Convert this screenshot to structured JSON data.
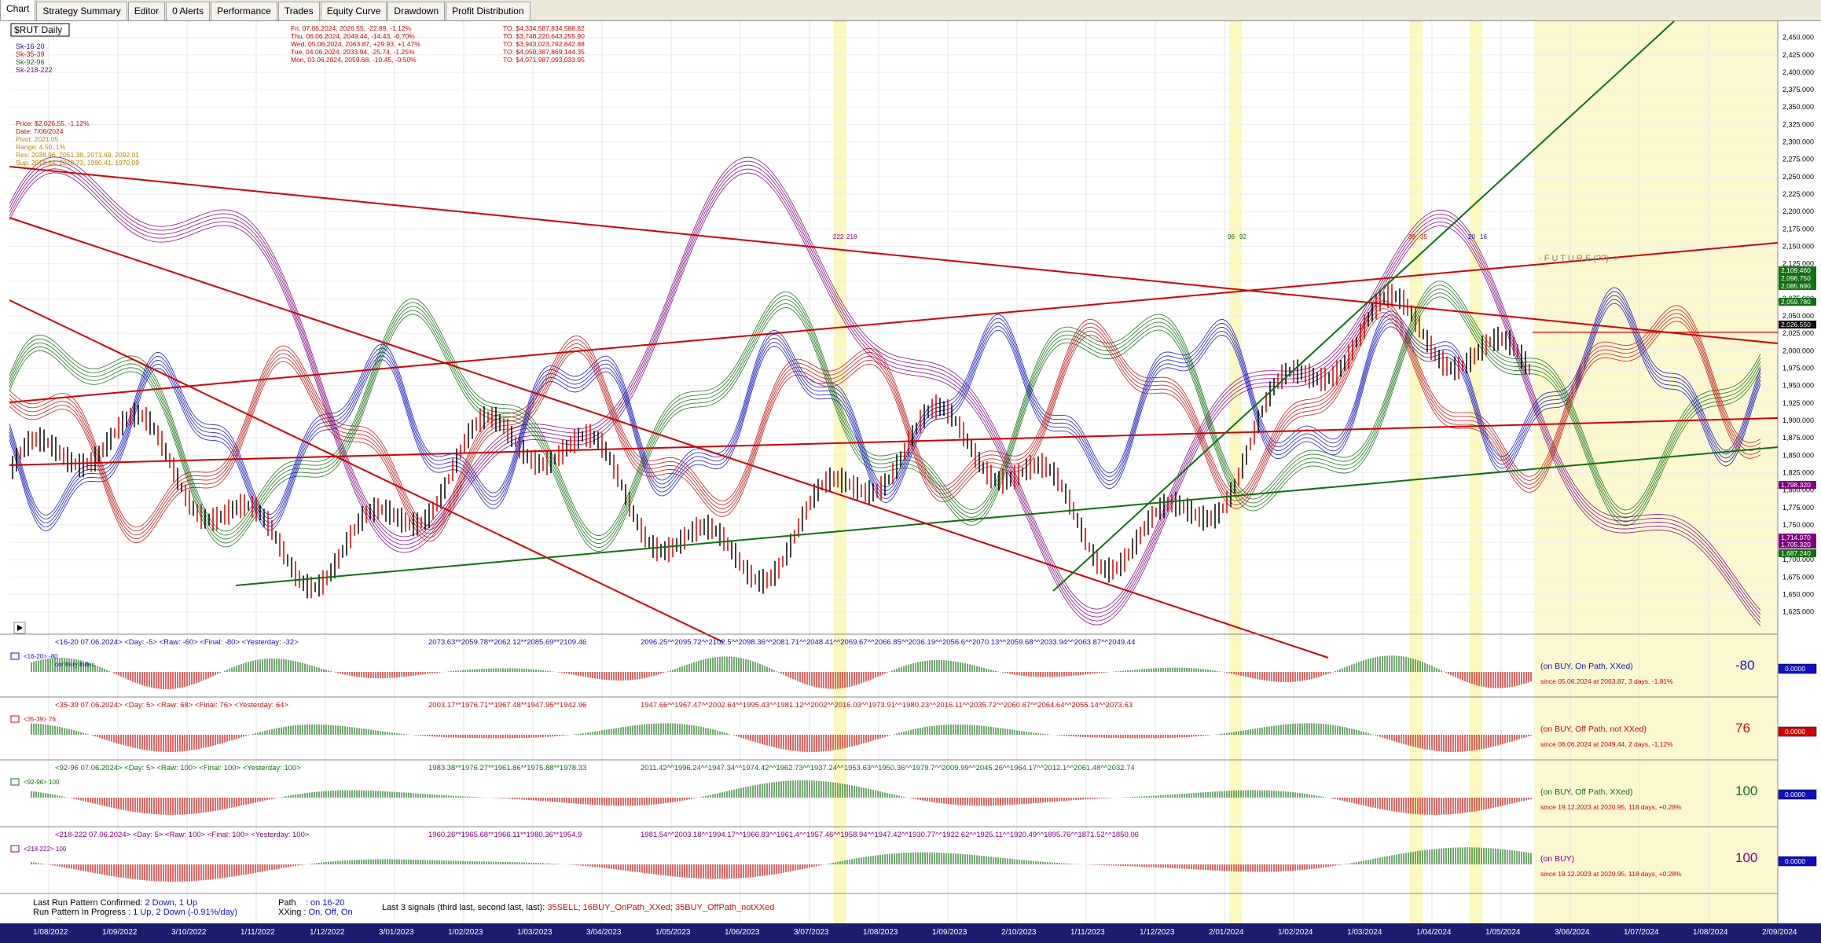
{
  "tabs": [
    "Chart",
    "Strategy Summary",
    "Editor",
    "0 Alerts",
    "Performance",
    "Trades",
    "Equity Curve",
    "Drawdown",
    "Profit Distribution"
  ],
  "symbol_label": "$RUT Daily",
  "legend": [
    "Sk-16-20",
    "Sk-35-39",
    "Sk-92-96",
    "Sk-218-222"
  ],
  "legend_colors": [
    "#1010c0",
    "#c01010",
    "#107010",
    "#800080"
  ],
  "info_block": [
    "Price: $2,026.55, -1.12%",
    "Date: 7/06/2024",
    "Pivot: 2021.05",
    "Range: 4.50, 1%",
    "Res: 2038.96, 2051.38, 2071.69, 2092.01",
    "Sup: 2018.64, 2010.73, 1990.41, 1970.09"
  ],
  "daily_rows": [
    [
      "Fri, 07.06.2024, 2026.55, -22.89, -1.12%",
      "TO: $4,334,587,834,588.82"
    ],
    [
      "Thu, 06.06.2024, 2049.44, -14.43, -0.70%",
      "TO: $3,748,220,643,255.90"
    ],
    [
      "Wed, 05.06.2024, 2063.87, +29.93, +1.47%",
      "TO: $3,943,023,792,842.88"
    ],
    [
      "Tue, 04.06.2024, 2033.94, -25.74, -1.25%",
      "TO: $4,050,387,869,144.35"
    ],
    [
      "Mon, 03.06.2024, 2059.68, -10.45, -0.50%",
      "TO: $4,071,987,093,033.95"
    ]
  ],
  "cycle_labels": [
    "222",
    "218",
    "96",
    "92",
    "39",
    "35",
    "20",
    "16"
  ],
  "future_label": "- F U T U R E (??) ->",
  "price_ticks": [
    "2,450.000",
    "2,425.000",
    "2,400.000",
    "2,375.000",
    "2,350.000",
    "2,325.000",
    "2,300.000",
    "2,275.000",
    "2,250.000",
    "2,225.000",
    "2,200.000",
    "2,175.000",
    "2,150.000",
    "2,125.000",
    "2,100.000",
    "2,075.000",
    "2,050.000",
    "2,025.000",
    "2,000.000",
    "1,975.000",
    "1,950.000",
    "1,925.000",
    "1,900.000",
    "1,875.000",
    "1,850.000",
    "1,825.000",
    "1,800.000",
    "1,775.000",
    "1,750.000",
    "1,725.000",
    "1,700.000",
    "1,675.000",
    "1,650.000",
    "1,625.000"
  ],
  "price_tags": [
    {
      "text": "2,109.460",
      "color": "#107010"
    },
    {
      "text": "2,096.750",
      "color": "#107010"
    },
    {
      "text": "2,085.690",
      "color": "#107010"
    },
    {
      "text": "2,059.780",
      "color": "#107010"
    },
    {
      "text": "2,026.550",
      "color": "#000000"
    },
    {
      "text": "1,798.320",
      "color": "#800080"
    },
    {
      "text": "1,714.070",
      "color": "#800080"
    },
    {
      "text": "1,705.320",
      "color": "#800080"
    },
    {
      "text": "1,687.240",
      "color": "#107010"
    }
  ],
  "indicators": [
    {
      "header": "<16-20  07.06.2024> <Day: -5> <Raw: -60> <Final: -80> <Yesterday: -32>",
      "values_a": "2073.63**2059.78**2062.12**2085.69**2109.46",
      "values_b": "2096.25^^2095.72^^2102.5^^2098.36^^2081.71^^2048.41^^2069.67^^2066.85^^2036.19^^2056.6^^2070.13^^2059.68^^2033.94^^2063.87^^2049.44",
      "tag": "<16-20>  -80",
      "tag2": "contrary index",
      "status": "(on BUY, On Path, XXed)",
      "since": "since 05.06.2024 at 2063.87, 3 days, -1.81%",
      "score": "-80",
      "box": "0.0000",
      "color": "#1010c0",
      "score_color": "#1010c0"
    },
    {
      "header": "<35-39  07.06.2024> <Day: 5> <Raw: 68> <Final: 76> <Yesterday: 64>",
      "values_a": "2003.17**1976.71**1967.48**1947.95**1942.96",
      "values_b": "1947.66^^1967.47^^2002.64^^1995.43^^1981.12^^2002^^2016.03^^1973.91^^1980.23^^2016.11^^2035.72^^2060.67^^2064.64^^2055.14^^2073.63",
      "tag": "<35-39>  76",
      "tag2": "",
      "status": "(on BUY, Off Path, not XXed)",
      "since": "since 06.06.2024 at 2049.44, 2 days, -1.12%",
      "score": "76",
      "box": "0.0000",
      "color": "#c01010",
      "score_color": "#c01010"
    },
    {
      "header": "<92-96  07.06.2024> <Day: 5> <Raw: 100> <Final: 100> <Yesterday: 100>",
      "values_a": "1983.38**1976.27**1961.86**1975.88**1978.33",
      "values_b": "2011.42^^1996.24^^1947.34^^1974.42^^1962.73^^1937.24^^1953.63^^1950.36^^1979.7^^2009.99^^2045.26^^1964.17^^2012.1^^2061.48^^2032.74",
      "tag": "<92-96>  100",
      "tag2": "",
      "status": "(on BUY, Off Path, XXed)",
      "since": "since 19.12.2023 at 2020.95, 118 days, +0.28%",
      "score": "100",
      "box": "0.0000",
      "color": "#107010",
      "score_color": "#107010"
    },
    {
      "header": "<218-222  07.06.2024> <Day: 5> <Raw: 100> <Final: 100> <Yesterday: 100>",
      "values_a": "1960.26**1965.68**1966.11**1980.36**1954.9",
      "values_b": "1981.54^^2003.18^^1994.17^^1966.83^^1961.4^^1957.46^^1958.94^^1947.42^^1930.77^^1922.62^^1925.11^^1920.49^^1895.76^^1871.52^^1850.06",
      "tag": "<218-222>  100",
      "tag2": "",
      "status": "(on BUY)",
      "since": "since 19.12.2023 at 2020.95, 118 days, +0.28%",
      "score": "100",
      "box": "0.0000",
      "color": "#800080",
      "score_color": "#800080"
    }
  ],
  "bottom": {
    "l1a": "Last Run Pattern Confirmed:",
    "l1b": "2 Down, 1 Up",
    "l2a": "Run Pattern In Progress",
    "l2b": ": 1 Up, 2 Down (-0.91%/day)",
    "p1a": "Path",
    "p1b": ": on 16-20",
    "p2a": "XXing",
    "p2b": ": On, Off, On",
    "sig_a": "Last 3 signals (third last, second last, last):",
    "sig_b": "35SELL;  16BUY_OnPath_XXed;  35BUY_OffPath_notXXed"
  },
  "dates": [
    "1/08/2022",
    "1/09/2022",
    "3/10/2022",
    "1/11/2022",
    "1/12/2022",
    "3/01/2023",
    "1/02/2023",
    "1/03/2023",
    "3/04/2023",
    "1/05/2023",
    "1/06/2023",
    "3/07/2023",
    "1/08/2023",
    "1/09/2023",
    "2/10/2023",
    "1/11/2023",
    "1/12/2023",
    "2/01/2024",
    "1/02/2024",
    "1/03/2024",
    "1/04/2024",
    "1/05/2024",
    "3/06/2024",
    "1/07/2024",
    "1/08/2024",
    "2/09/2024"
  ]
}
